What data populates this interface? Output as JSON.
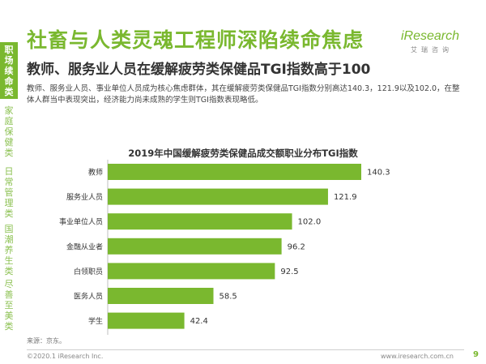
{
  "sidebar": {
    "items": [
      {
        "label": "职场续命类",
        "active": true
      },
      {
        "label": "家庭保健类",
        "active": false
      },
      {
        "label": "日常管理类",
        "active": false
      },
      {
        "label": "国潮养生类",
        "active": false
      },
      {
        "label": "尽善至美类",
        "active": false
      }
    ]
  },
  "header": {
    "title": "社畜与人类灵魂工程师深陷续命焦虑",
    "subtitle": "教师、服务业人员在缓解疲劳类保健品TGI指数高于100",
    "description": "教师、服务业人员、事业单位人员成为核心焦虑群体，其在缓解疲劳类保健品TGI指数分别高达140.3，121.9以及102.0，在整体人群当中表现突出，经济能力尚未成熟的学生则TGI指数表现略低。"
  },
  "logo": {
    "main": "iResearch",
    "sub": "艾瑞咨询"
  },
  "colors": {
    "accent": "#7ab82f",
    "bar": "#7ab82f"
  },
  "chart_data": {
    "type": "bar",
    "orientation": "horizontal",
    "title": "2019年中国缓解疲劳类保健品成交额职业分布TGI指数",
    "categories": [
      "教师",
      "服务业人员",
      "事业单位人员",
      "金融从业者",
      "白领职员",
      "医务人员",
      "学生"
    ],
    "values": [
      140.3,
      121.9,
      102.0,
      96.2,
      92.5,
      58.5,
      42.4
    ],
    "value_labels": [
      "140.3",
      "121.9",
      "102.0",
      "96.2",
      "92.5",
      "58.5",
      "42.4"
    ],
    "xlim": [
      0,
      140.3
    ],
    "grid": false,
    "legend": "none"
  },
  "footer": {
    "source": "来源：京东。",
    "copyright": "©2020.1 iResearch Inc.",
    "site": "www.iresearch.com.cn",
    "page": "9"
  }
}
